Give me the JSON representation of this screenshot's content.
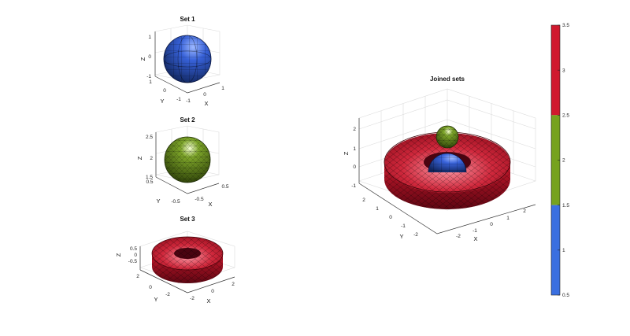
{
  "chart_data": [
    {
      "type": "3d-surface",
      "title": "Set 1",
      "shape": "sphere",
      "color": "#2f5bd6",
      "xlabel": "X",
      "ylabel": "Y",
      "zlabel": "Z",
      "xticks": [
        "-1",
        "0",
        "1"
      ],
      "yticks": [
        "1",
        "0",
        "-1"
      ],
      "zticks": [
        "1",
        "0",
        "-1"
      ],
      "xlim": [
        -1,
        1
      ],
      "ylim": [
        -1,
        1
      ],
      "zlim": [
        -1,
        1
      ],
      "grid": true
    },
    {
      "type": "3d-surface",
      "title": "Set 2",
      "shape": "sphere",
      "color": "#6e9a1e",
      "xlabel": "X",
      "ylabel": "Y",
      "zlabel": "Z",
      "xticks": [
        "-0.5",
        "0.5"
      ],
      "yticks": [
        "0.5",
        "-0.5"
      ],
      "zticks": [
        "2.5",
        "2",
        "1.5"
      ],
      "xlim": [
        -0.5,
        0.5
      ],
      "ylim": [
        -0.5,
        0.5
      ],
      "zlim": [
        1.5,
        2.5
      ],
      "grid": true
    },
    {
      "type": "3d-surface",
      "title": "Set 3",
      "shape": "torus",
      "color": "#d0192e",
      "xlabel": "X",
      "ylabel": "Y",
      "zlabel": "Z",
      "xticks": [
        "-2",
        "0",
        "2"
      ],
      "yticks": [
        "2",
        "0",
        "-2"
      ],
      "zticks": [
        "0.5",
        "0",
        "-0.5"
      ],
      "xlim": [
        -2.5,
        2.5
      ],
      "ylim": [
        -2.5,
        2.5
      ],
      "zlim": [
        -0.5,
        0.5
      ],
      "grid": true
    },
    {
      "type": "3d-surface",
      "title": "Joined sets",
      "shape": "torus+spheres",
      "xlabel": "X",
      "ylabel": "Y",
      "zlabel": "Z",
      "xticks": [
        "-2",
        "-1",
        "0",
        "1",
        "2"
      ],
      "yticks": [
        "2",
        "1",
        "0",
        "-1",
        "-2"
      ],
      "zticks": [
        "2",
        "1",
        "0",
        "-1"
      ],
      "xlim": [
        -2.5,
        2.5
      ],
      "ylim": [
        -2.5,
        2.5
      ],
      "zlim": [
        -1,
        2.5
      ],
      "grid": true
    },
    {
      "type": "colorbar",
      "ticks": [
        "3.5",
        "3",
        "2.5",
        "2",
        "1.5",
        "1",
        "0.5"
      ],
      "range": [
        0.5,
        3.5
      ],
      "segments": [
        {
          "from": 2.5,
          "to": 3.5,
          "color": "#d0192e"
        },
        {
          "from": 1.5,
          "to": 2.5,
          "color": "#76a21e"
        },
        {
          "from": 0.5,
          "to": 1.5,
          "color": "#3a6fe0"
        }
      ]
    }
  ]
}
